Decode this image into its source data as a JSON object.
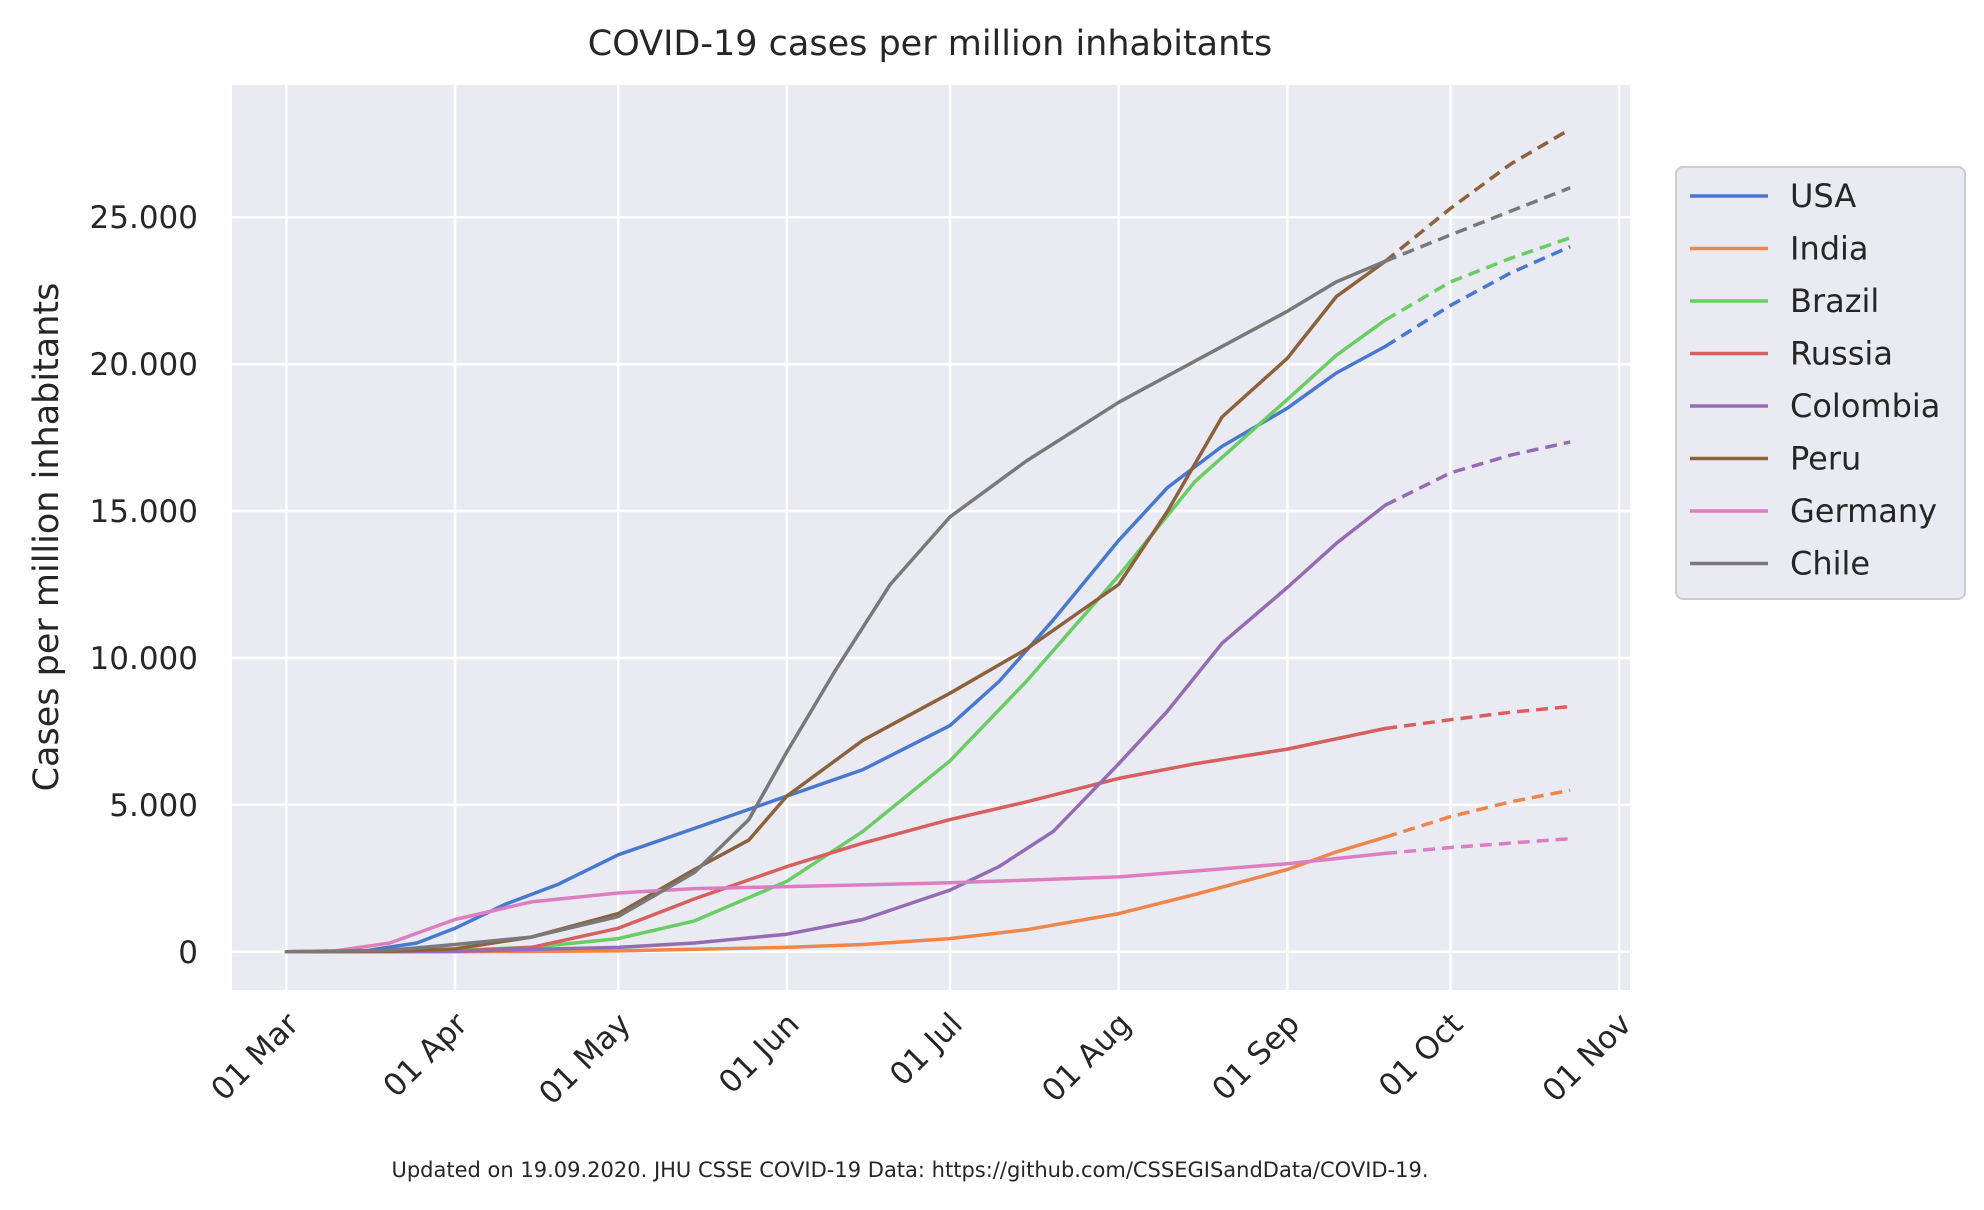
{
  "footer": "Updated on 19.09.2020. JHU CSSE COVID-19 Data: https://github.com/CSSEGISandData/COVID-19.",
  "chart_data": {
    "type": "line",
    "title": "COVID-19 cases per million inhabitants",
    "xlabel": "",
    "ylabel": "Cases per million inhabitants",
    "x_axis": "date",
    "xlim": [
      "2020-02-20",
      "2020-11-03"
    ],
    "ylim": [
      -1300,
      29500
    ],
    "x_ticks": [
      {
        "date": "2020-03-01",
        "label": "01 Mar"
      },
      {
        "date": "2020-04-01",
        "label": "01 Apr"
      },
      {
        "date": "2020-05-01",
        "label": "01 May"
      },
      {
        "date": "2020-06-01",
        "label": "01 Jun"
      },
      {
        "date": "2020-07-01",
        "label": "01 Jul"
      },
      {
        "date": "2020-08-01",
        "label": "01 Aug"
      },
      {
        "date": "2020-09-01",
        "label": "01 Sep"
      },
      {
        "date": "2020-10-01",
        "label": "01 Oct"
      },
      {
        "date": "2020-11-01",
        "label": "01 Nov"
      }
    ],
    "y_ticks": [
      {
        "value": 0,
        "label": "0"
      },
      {
        "value": 5000,
        "label": "5.000"
      },
      {
        "value": 10000,
        "label": "10.000"
      },
      {
        "value": 15000,
        "label": "15.000"
      },
      {
        "value": 20000,
        "label": "20.000"
      },
      {
        "value": 25000,
        "label": "25.000"
      }
    ],
    "grid": true,
    "legend_position": "right",
    "background": "#eaeaf2",
    "projection_style": "dashed",
    "series": [
      {
        "name": "USA",
        "color": "#4878d0",
        "actual": [
          [
            "2020-03-01",
            0
          ],
          [
            "2020-03-15",
            20
          ],
          [
            "2020-03-25",
            300
          ],
          [
            "2020-04-01",
            800
          ],
          [
            "2020-04-10",
            1600
          ],
          [
            "2020-04-20",
            2300
          ],
          [
            "2020-05-01",
            3300
          ],
          [
            "2020-05-15",
            4200
          ],
          [
            "2020-06-01",
            5300
          ],
          [
            "2020-06-15",
            6200
          ],
          [
            "2020-07-01",
            7700
          ],
          [
            "2020-07-10",
            9200
          ],
          [
            "2020-07-20",
            11300
          ],
          [
            "2020-08-01",
            14000
          ],
          [
            "2020-08-10",
            15800
          ],
          [
            "2020-08-20",
            17200
          ],
          [
            "2020-09-01",
            18500
          ],
          [
            "2020-09-10",
            19700
          ],
          [
            "2020-09-19",
            20600
          ]
        ],
        "projection": [
          [
            "2020-09-19",
            20600
          ],
          [
            "2020-10-01",
            22000
          ],
          [
            "2020-10-12",
            23100
          ],
          [
            "2020-10-23",
            24000
          ]
        ]
      },
      {
        "name": "India",
        "color": "#ee854a",
        "actual": [
          [
            "2020-03-01",
            0
          ],
          [
            "2020-04-01",
            5
          ],
          [
            "2020-05-01",
            30
          ],
          [
            "2020-06-01",
            150
          ],
          [
            "2020-06-15",
            250
          ],
          [
            "2020-07-01",
            450
          ],
          [
            "2020-07-15",
            750
          ],
          [
            "2020-08-01",
            1300
          ],
          [
            "2020-08-15",
            1950
          ],
          [
            "2020-09-01",
            2800
          ],
          [
            "2020-09-10",
            3400
          ],
          [
            "2020-09-19",
            3900
          ]
        ],
        "projection": [
          [
            "2020-09-19",
            3900
          ],
          [
            "2020-10-01",
            4600
          ],
          [
            "2020-10-12",
            5100
          ],
          [
            "2020-10-23",
            5500
          ]
        ]
      },
      {
        "name": "Brazil",
        "color": "#6acc64",
        "actual": [
          [
            "2020-03-01",
            0
          ],
          [
            "2020-04-01",
            50
          ],
          [
            "2020-04-15",
            150
          ],
          [
            "2020-05-01",
            450
          ],
          [
            "2020-05-15",
            1050
          ],
          [
            "2020-06-01",
            2400
          ],
          [
            "2020-06-15",
            4100
          ],
          [
            "2020-07-01",
            6500
          ],
          [
            "2020-07-15",
            9200
          ],
          [
            "2020-08-01",
            12800
          ],
          [
            "2020-08-15",
            16000
          ],
          [
            "2020-09-01",
            18800
          ],
          [
            "2020-09-10",
            20300
          ],
          [
            "2020-09-19",
            21500
          ]
        ],
        "projection": [
          [
            "2020-09-19",
            21500
          ],
          [
            "2020-10-01",
            22800
          ],
          [
            "2020-10-12",
            23600
          ],
          [
            "2020-10-23",
            24300
          ]
        ]
      },
      {
        "name": "Russia",
        "color": "#d65f5f",
        "actual": [
          [
            "2020-03-01",
            0
          ],
          [
            "2020-04-01",
            20
          ],
          [
            "2020-04-15",
            150
          ],
          [
            "2020-05-01",
            800
          ],
          [
            "2020-05-15",
            1800
          ],
          [
            "2020-06-01",
            2900
          ],
          [
            "2020-06-15",
            3700
          ],
          [
            "2020-07-01",
            4500
          ],
          [
            "2020-07-15",
            5100
          ],
          [
            "2020-08-01",
            5900
          ],
          [
            "2020-08-15",
            6400
          ],
          [
            "2020-09-01",
            6900
          ],
          [
            "2020-09-19",
            7600
          ]
        ],
        "projection": [
          [
            "2020-09-19",
            7600
          ],
          [
            "2020-10-01",
            7900
          ],
          [
            "2020-10-12",
            8150
          ],
          [
            "2020-10-23",
            8350
          ]
        ]
      },
      {
        "name": "Colombia",
        "color": "#956cb4",
        "actual": [
          [
            "2020-03-01",
            0
          ],
          [
            "2020-04-01",
            20
          ],
          [
            "2020-05-01",
            150
          ],
          [
            "2020-05-15",
            300
          ],
          [
            "2020-06-01",
            600
          ],
          [
            "2020-06-15",
            1100
          ],
          [
            "2020-07-01",
            2100
          ],
          [
            "2020-07-10",
            2900
          ],
          [
            "2020-07-20",
            4100
          ],
          [
            "2020-08-01",
            6400
          ],
          [
            "2020-08-10",
            8200
          ],
          [
            "2020-08-20",
            10500
          ],
          [
            "2020-09-01",
            12400
          ],
          [
            "2020-09-10",
            13900
          ],
          [
            "2020-09-19",
            15200
          ]
        ],
        "projection": [
          [
            "2020-09-19",
            15200
          ],
          [
            "2020-10-01",
            16300
          ],
          [
            "2020-10-12",
            16900
          ],
          [
            "2020-10-23",
            17350
          ]
        ]
      },
      {
        "name": "Peru",
        "color": "#8c613c",
        "actual": [
          [
            "2020-03-01",
            0
          ],
          [
            "2020-03-20",
            20
          ],
          [
            "2020-04-01",
            100
          ],
          [
            "2020-04-15",
            500
          ],
          [
            "2020-05-01",
            1300
          ],
          [
            "2020-05-15",
            2800
          ],
          [
            "2020-05-25",
            3800
          ],
          [
            "2020-06-01",
            5300
          ],
          [
            "2020-06-15",
            7200
          ],
          [
            "2020-07-01",
            8800
          ],
          [
            "2020-07-15",
            10300
          ],
          [
            "2020-08-01",
            12500
          ],
          [
            "2020-08-10",
            15000
          ],
          [
            "2020-08-20",
            18200
          ],
          [
            "2020-09-01",
            20200
          ],
          [
            "2020-09-10",
            22300
          ],
          [
            "2020-09-19",
            23500
          ]
        ],
        "projection": [
          [
            "2020-09-19",
            23500
          ],
          [
            "2020-10-01",
            25300
          ],
          [
            "2020-10-12",
            26800
          ],
          [
            "2020-10-23",
            28000
          ]
        ]
      },
      {
        "name": "Germany",
        "color": "#dc7ec0",
        "actual": [
          [
            "2020-03-01",
            0
          ],
          [
            "2020-03-10",
            30
          ],
          [
            "2020-03-20",
            300
          ],
          [
            "2020-04-01",
            1100
          ],
          [
            "2020-04-15",
            1700
          ],
          [
            "2020-05-01",
            2000
          ],
          [
            "2020-05-15",
            2150
          ],
          [
            "2020-06-01",
            2220
          ],
          [
            "2020-07-01",
            2350
          ],
          [
            "2020-08-01",
            2550
          ],
          [
            "2020-08-15",
            2750
          ],
          [
            "2020-09-01",
            3000
          ],
          [
            "2020-09-19",
            3350
          ]
        ],
        "projection": [
          [
            "2020-09-19",
            3350
          ],
          [
            "2020-10-01",
            3550
          ],
          [
            "2020-10-12",
            3700
          ],
          [
            "2020-10-23",
            3850
          ]
        ]
      },
      {
        "name": "Chile",
        "color": "#797979",
        "actual": [
          [
            "2020-03-01",
            0
          ],
          [
            "2020-03-20",
            50
          ],
          [
            "2020-04-01",
            250
          ],
          [
            "2020-04-15",
            500
          ],
          [
            "2020-05-01",
            1200
          ],
          [
            "2020-05-15",
            2700
          ],
          [
            "2020-05-25",
            4500
          ],
          [
            "2020-06-01",
            6800
          ],
          [
            "2020-06-10",
            9600
          ],
          [
            "2020-06-20",
            12500
          ],
          [
            "2020-07-01",
            14800
          ],
          [
            "2020-07-15",
            16700
          ],
          [
            "2020-08-01",
            18700
          ],
          [
            "2020-08-15",
            20100
          ],
          [
            "2020-09-01",
            21800
          ],
          [
            "2020-09-10",
            22800
          ],
          [
            "2020-09-19",
            23500
          ]
        ],
        "projection": [
          [
            "2020-09-19",
            23500
          ],
          [
            "2020-10-01",
            24400
          ],
          [
            "2020-10-12",
            25200
          ],
          [
            "2020-10-23",
            26000
          ]
        ]
      }
    ]
  }
}
